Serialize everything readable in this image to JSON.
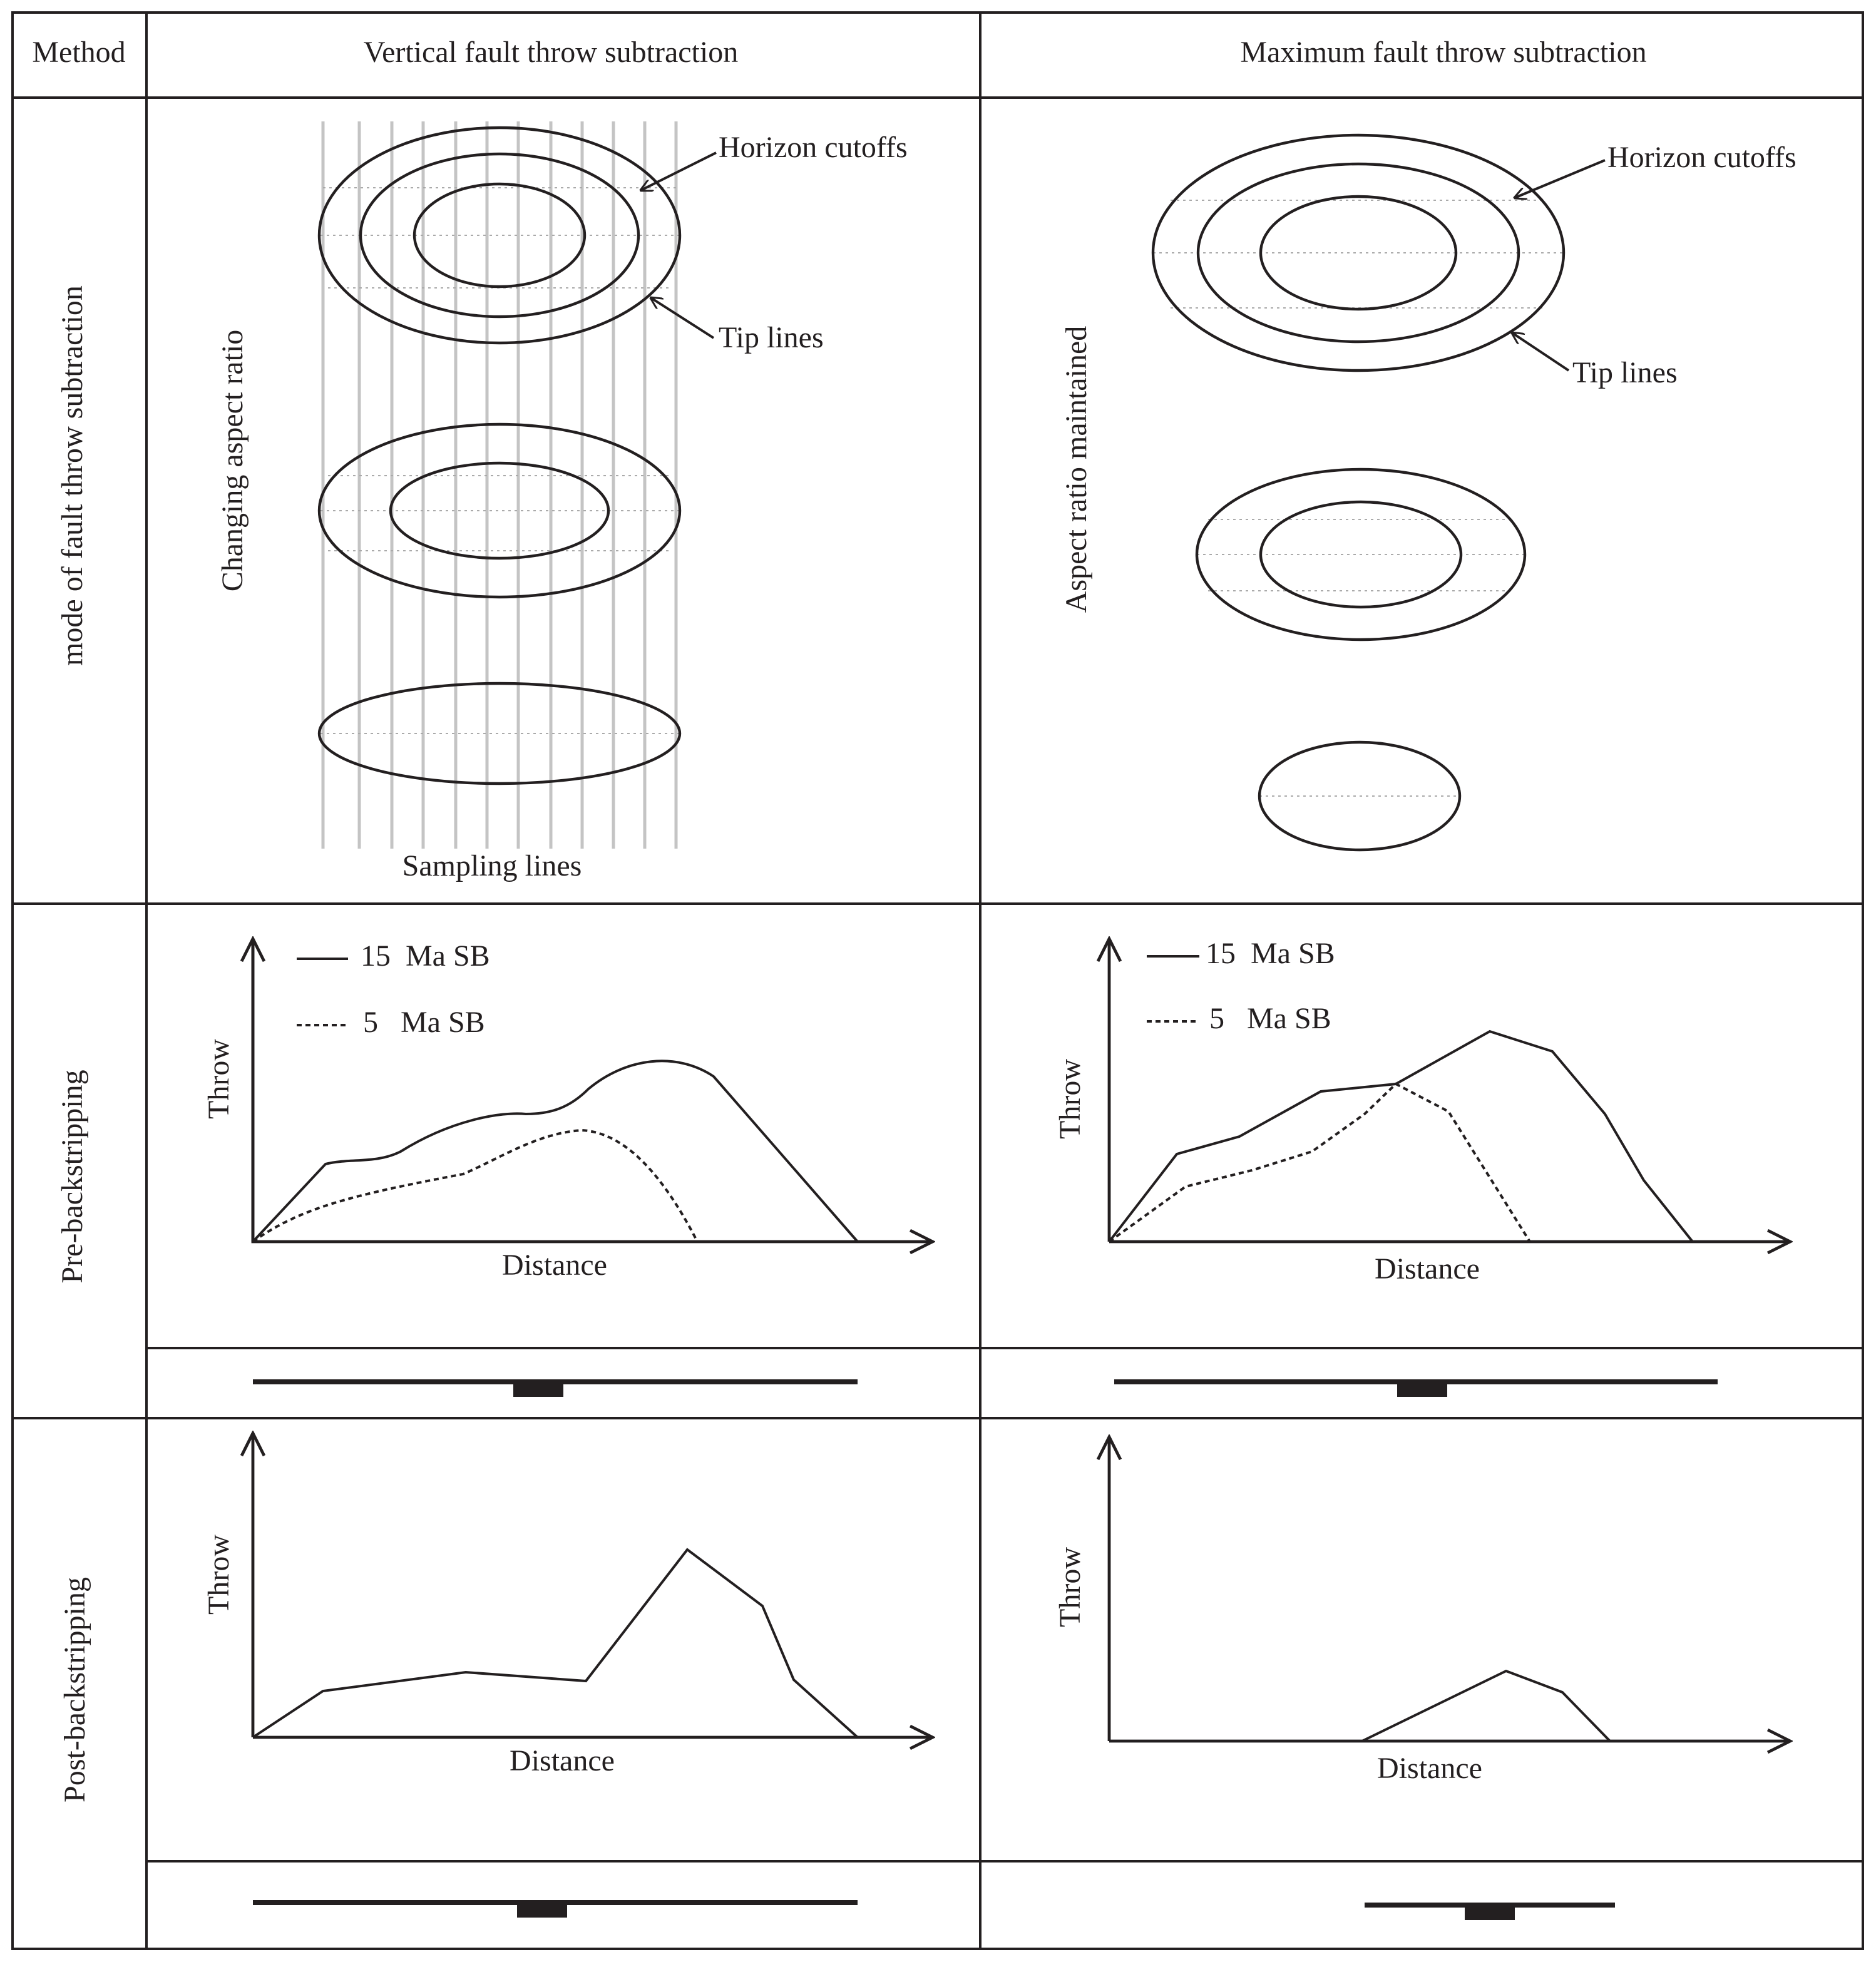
{
  "header": {
    "method": "Method",
    "columns": [
      "Vertical fault throw subtraction",
      "Maximum fault throw subtraction"
    ]
  },
  "rows": [
    "mode of fault throw subtraction",
    "Pre-backstripping",
    "Post-backstripping"
  ],
  "sketches": [
    {
      "aspect_label": "Changing aspect ratio",
      "horizon_label": "Horizon cutoffs",
      "tip_label": "Tip lines",
      "sampling_label": "Sampling lines"
    },
    {
      "aspect_label": "Aspect ratio maintained",
      "horizon_label": "Horizon cutoffs",
      "tip_label": "Tip lines"
    }
  ],
  "profiles": [
    {
      "y_label": "Throw",
      "x_label": "Distance",
      "legend": [
        "15  Ma SB",
        "5   Ma SB"
      ]
    },
    {
      "y_label": "Throw",
      "x_label": "Distance",
      "legend": [
        "15  Ma SB",
        "5   Ma SB"
      ]
    },
    {
      "y_label": "Throw",
      "x_label": "Distance"
    },
    {
      "y_label": "Throw",
      "x_label": "Distance"
    }
  ]
}
